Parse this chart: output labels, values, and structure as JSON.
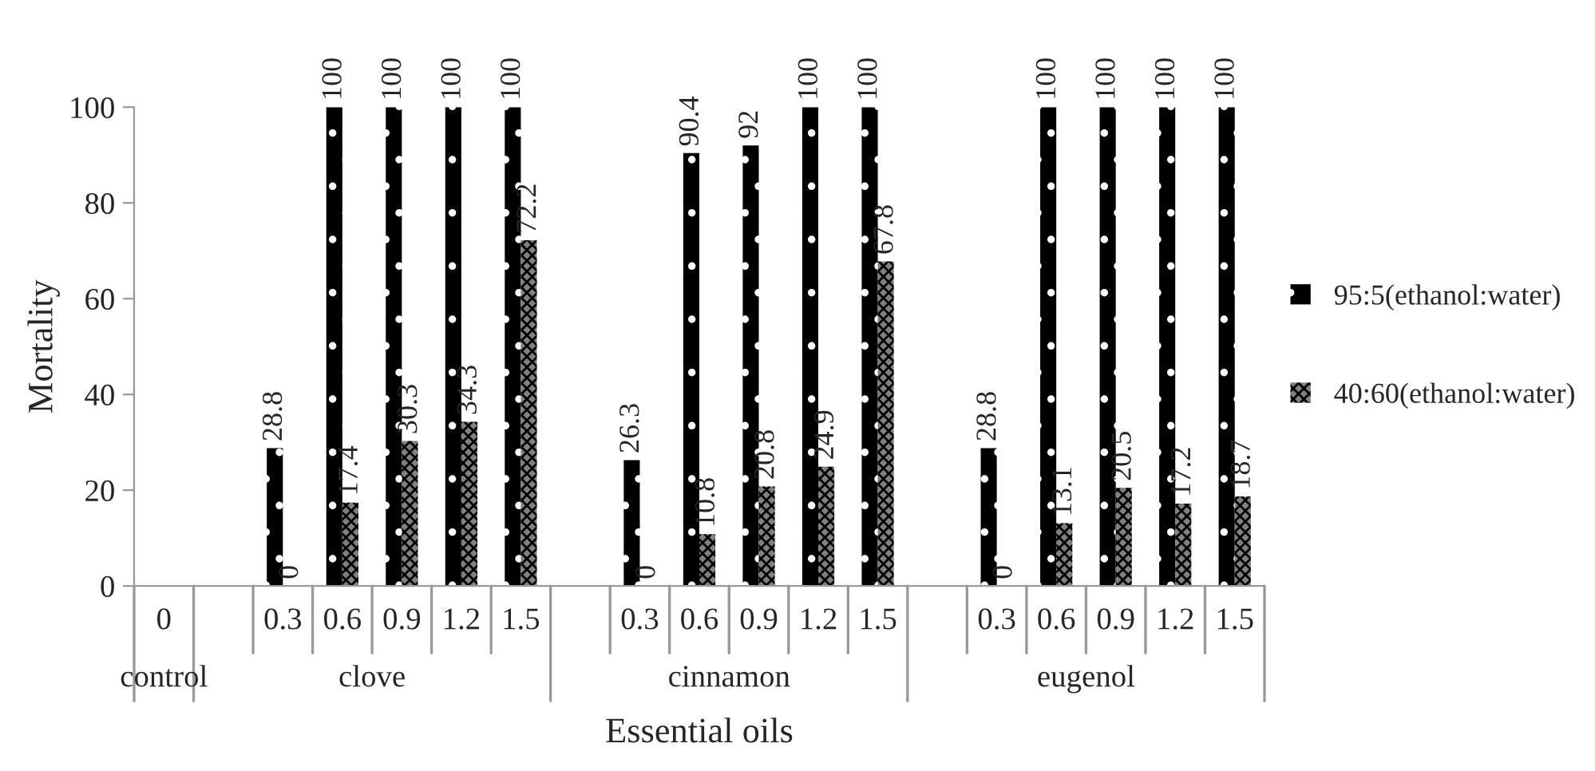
{
  "chart_data": {
    "type": "bar",
    "xlabel": "Essential oils",
    "ylabel": "Mortality",
    "categories": [
      "0",
      null,
      "0.3",
      "0.6",
      "0.9",
      "1.2",
      "1.5",
      null,
      "0.3",
      "0.6",
      "0.9",
      "1.2",
      "1.5",
      null,
      "0.3",
      "0.6",
      "0.9",
      "1.2",
      "1.5"
    ],
    "annotations": [
      "control",
      "clove",
      "cinnamon",
      "eugenol"
    ],
    "series": [
      {
        "name": "95:5(ethanol:water)",
        "color": "#000000",
        "values": [
          null,
          null,
          28.8,
          100,
          100,
          100,
          100,
          null,
          26.3,
          90.4,
          92,
          100,
          100,
          null,
          28.8,
          100,
          100,
          100,
          100
        ]
      },
      {
        "name": "40:60(ethanol:water)",
        "color": "#808080",
        "values": [
          null,
          null,
          0,
          17.4,
          30.3,
          34.3,
          72.2,
          null,
          0,
          10.8,
          20.8,
          24.9,
          67.8,
          null,
          0,
          13.1,
          20.5,
          17.2,
          18.7
        ]
      }
    ],
    "ylim": [
      0,
      100
    ],
    "yticks": [
      0,
      20,
      40,
      60,
      80,
      100
    ],
    "data_labels": true,
    "grid": false,
    "legend": "right"
  }
}
